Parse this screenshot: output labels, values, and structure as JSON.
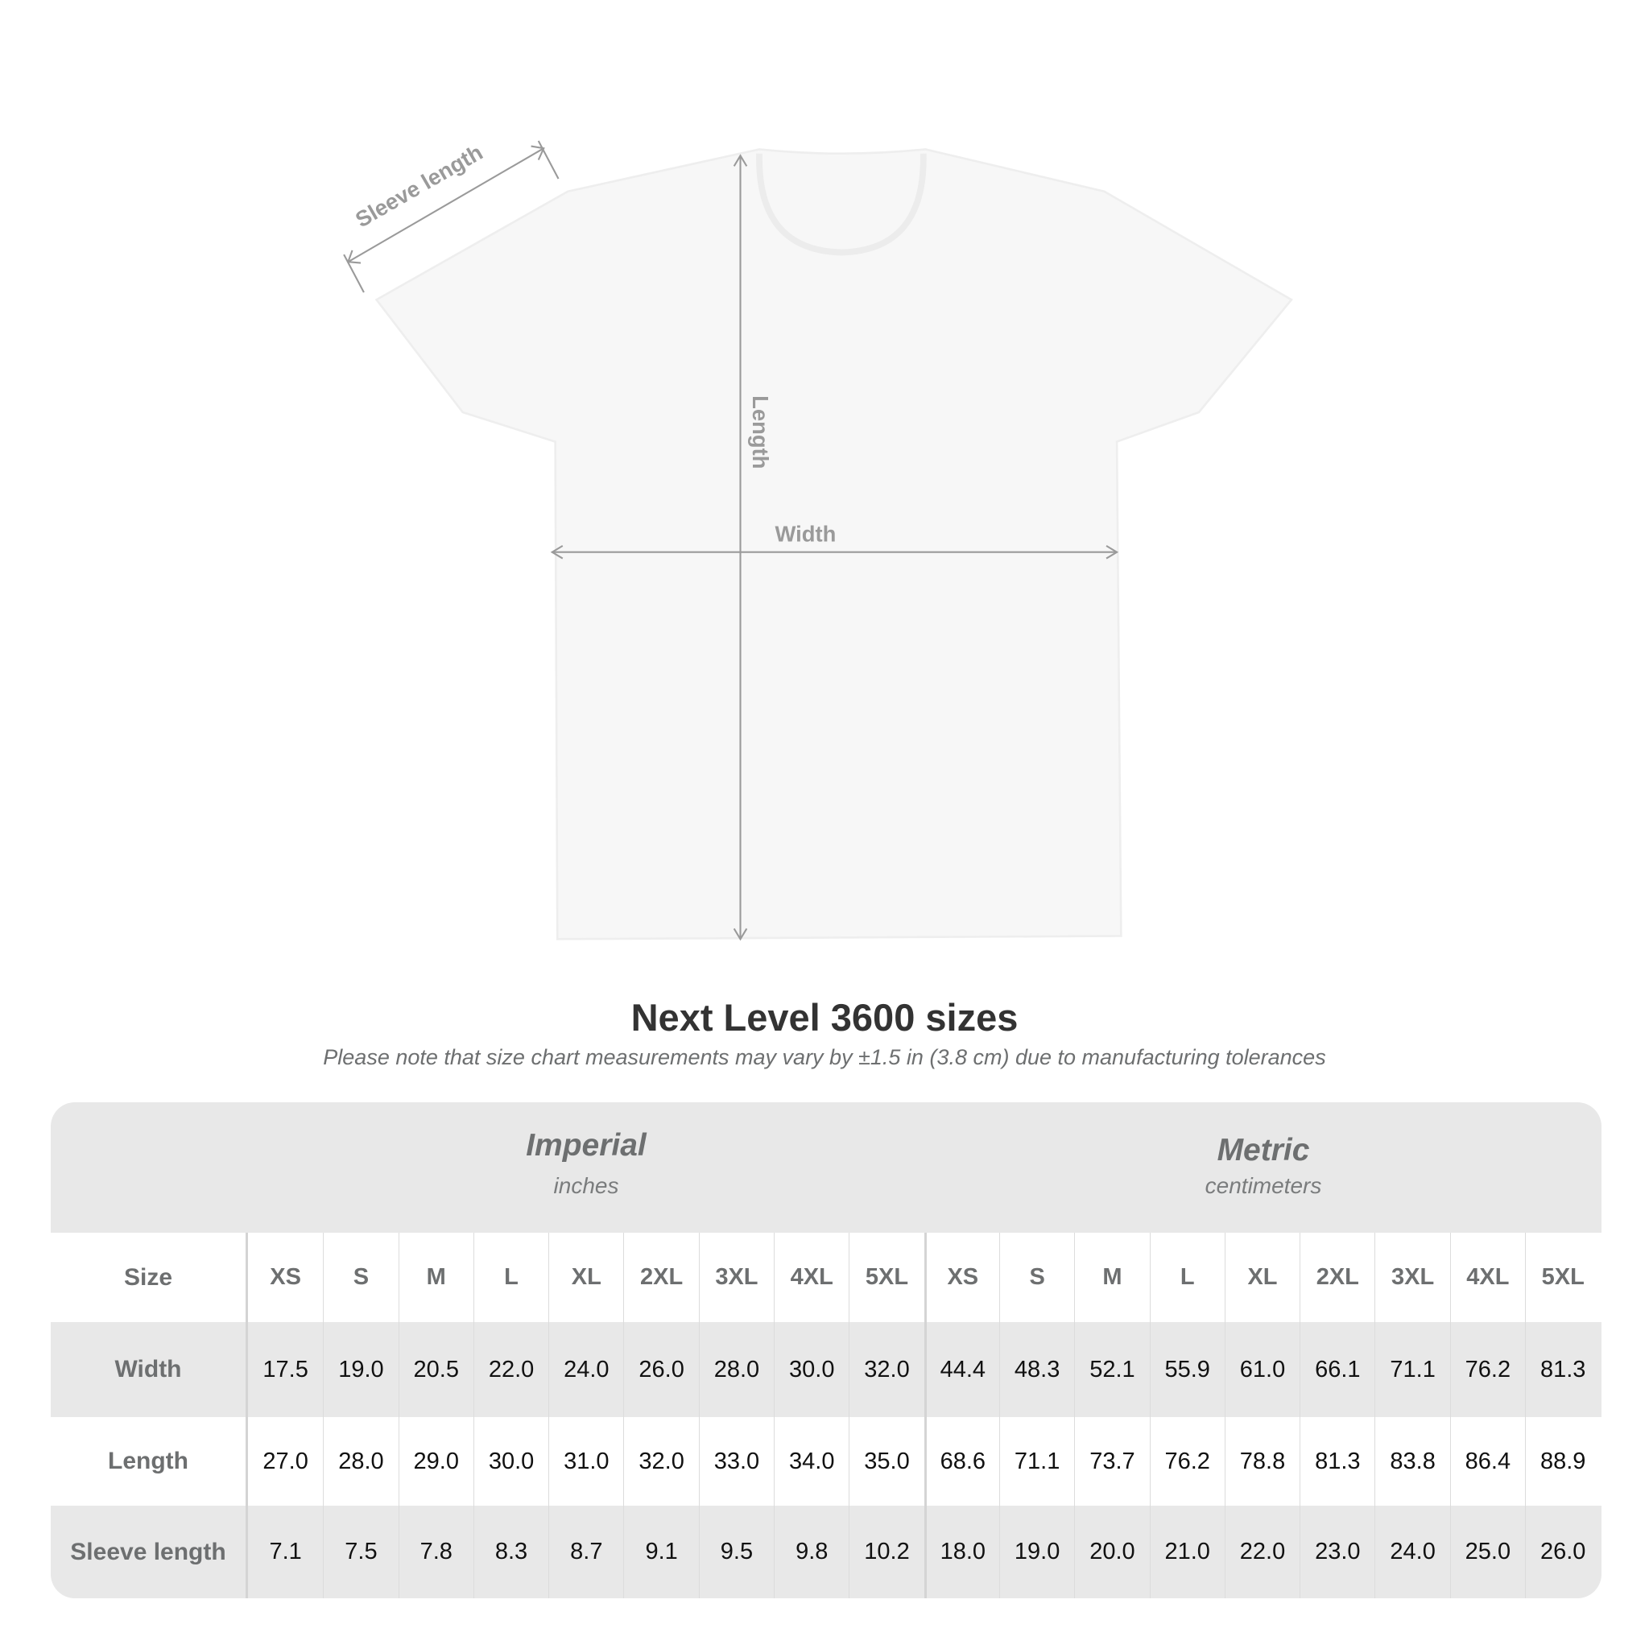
{
  "diagram": {
    "sleeve_label": "Sleeve length",
    "length_label": "Length",
    "width_label": "Width",
    "garment_color": "#f7f7f7",
    "arrow_color": "#9a9a9a"
  },
  "title": "Next Level 3600 sizes",
  "subtitle": "Please note that size chart measurements may vary by ±1.5 in (3.8 cm) due to manufacturing tolerances",
  "table": {
    "imperial": {
      "name": "Imperial",
      "unit": "inches"
    },
    "metric": {
      "name": "Metric",
      "unit": "centimeters"
    },
    "size_label": "Size",
    "sizes": [
      "XS",
      "S",
      "M",
      "L",
      "XL",
      "2XL",
      "3XL",
      "4XL",
      "5XL"
    ],
    "rows": [
      {
        "label": "Width",
        "imperial": [
          "17.5",
          "19.0",
          "20.5",
          "22.0",
          "24.0",
          "26.0",
          "28.0",
          "30.0",
          "32.0"
        ],
        "metric": [
          "44.4",
          "48.3",
          "52.1",
          "55.9",
          "61.0",
          "66.1",
          "71.1",
          "76.2",
          "81.3"
        ]
      },
      {
        "label": "Length",
        "imperial": [
          "27.0",
          "28.0",
          "29.0",
          "30.0",
          "31.0",
          "32.0",
          "33.0",
          "34.0",
          "35.0"
        ],
        "metric": [
          "68.6",
          "71.1",
          "73.7",
          "76.2",
          "78.8",
          "81.3",
          "83.8",
          "86.4",
          "88.9"
        ]
      },
      {
        "label": "Sleeve length",
        "imperial": [
          "7.1",
          "7.5",
          "7.8",
          "8.3",
          "8.7",
          "9.1",
          "9.5",
          "9.8",
          "10.2"
        ],
        "metric": [
          "18.0",
          "19.0",
          "20.0",
          "21.0",
          "22.0",
          "23.0",
          "24.0",
          "25.0",
          "26.0"
        ]
      }
    ],
    "header_color": "#e8e8e8",
    "label_color": "#6d6f70"
  }
}
